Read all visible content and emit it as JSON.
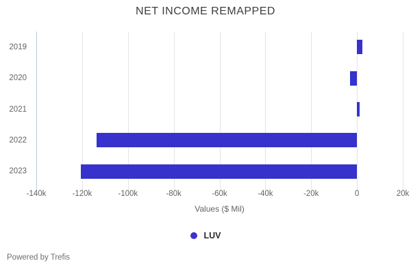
{
  "title": "NET INCOME REMAPPED",
  "footer": "Powered by Trefis",
  "legend": {
    "items": [
      {
        "label": "LUV",
        "color": "#3b34cf"
      }
    ]
  },
  "colors": {
    "bar": "#3632cb",
    "gridline": "#e4e4e4",
    "axis_line": "#b9cbdc",
    "title_text": "#3d3d3d",
    "axis_text": "#636363"
  },
  "chart_data": {
    "type": "bar",
    "orientation": "horizontal",
    "title": "NET INCOME REMAPPED",
    "categories": [
      "2019",
      "2020",
      "2021",
      "2022",
      "2023"
    ],
    "series": [
      {
        "name": "LUV",
        "values": [
          2400,
          -3000,
          1100,
          -113700,
          -120600
        ]
      }
    ],
    "xlabel": "Values ($ Mil)",
    "ylabel": "",
    "xlim": [
      -140000,
      20000
    ],
    "x_ticks": [
      {
        "value": -140000,
        "label": "-140k"
      },
      {
        "value": -120000,
        "label": "-120k"
      },
      {
        "value": -100000,
        "label": "-100k"
      },
      {
        "value": -80000,
        "label": "-80k"
      },
      {
        "value": -60000,
        "label": "-60k"
      },
      {
        "value": -40000,
        "label": "-40k"
      },
      {
        "value": -20000,
        "label": "-20k"
      },
      {
        "value": 0,
        "label": "0"
      },
      {
        "value": 20000,
        "label": "20k"
      }
    ],
    "grid": true,
    "legend_position": "bottom"
  }
}
